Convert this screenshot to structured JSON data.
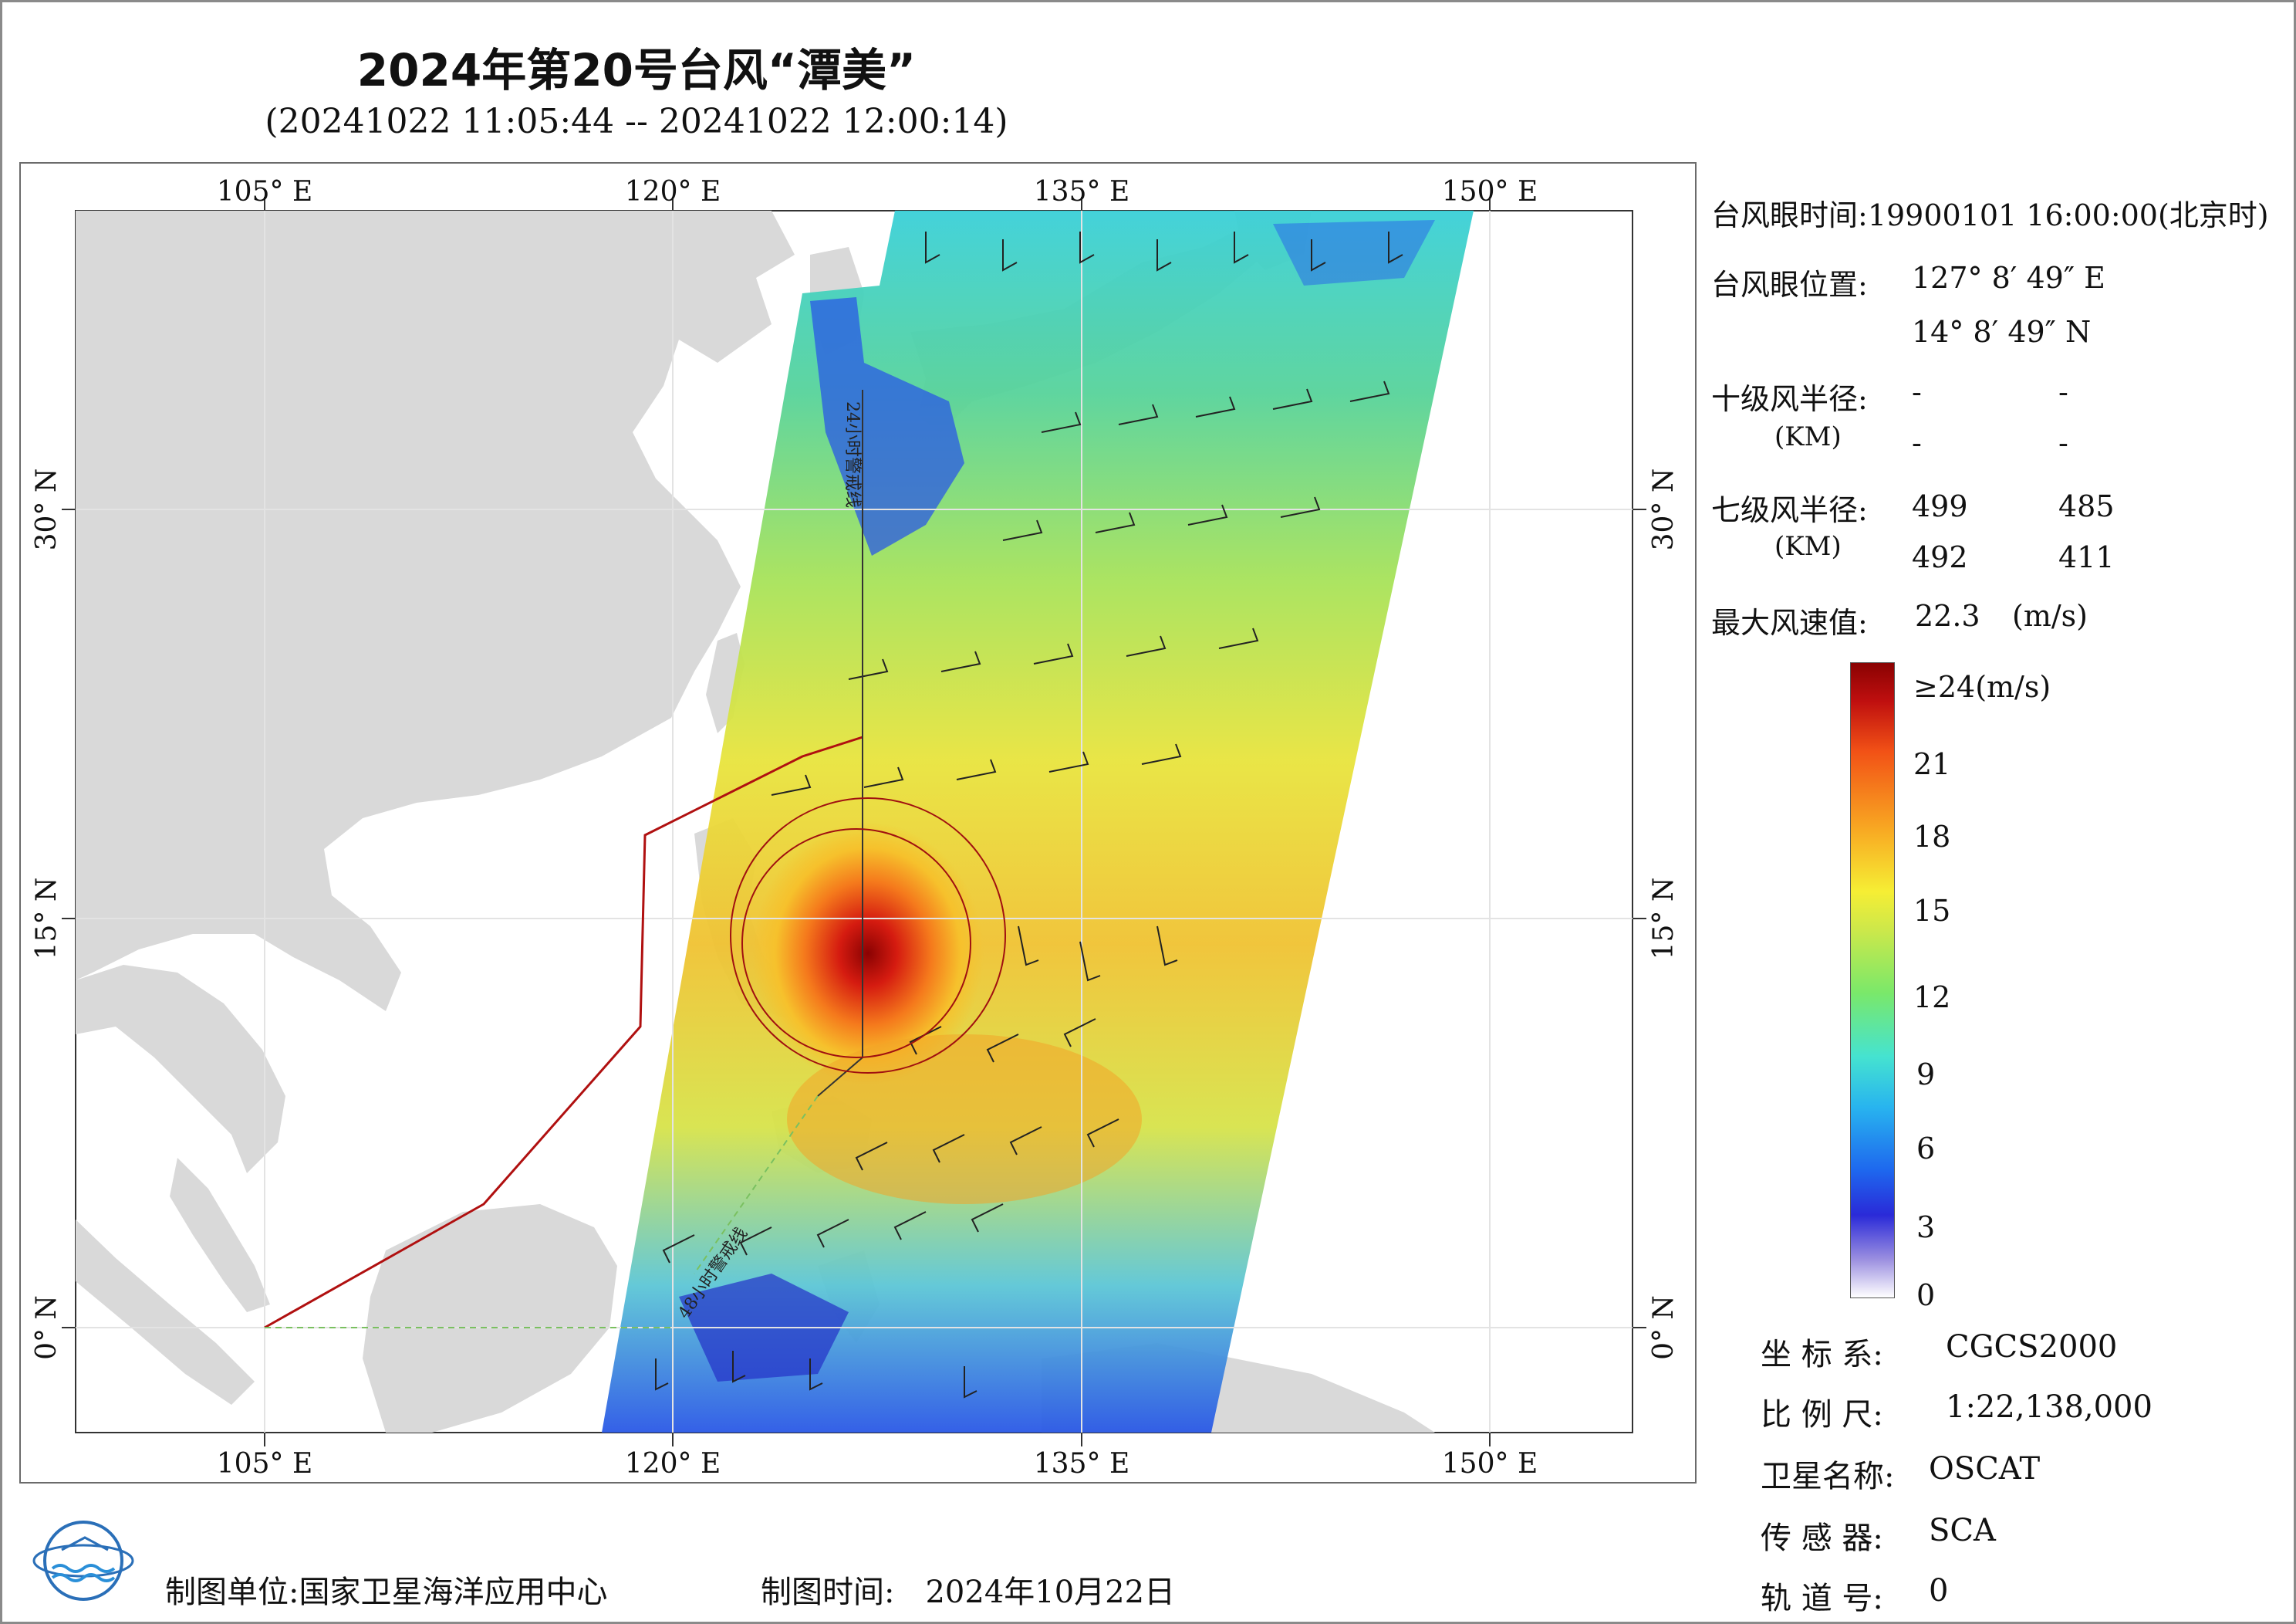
{
  "header": {
    "title": "2024年第20号台风“潭美”",
    "subtitle": "(20241022 11:05:44 -- 20241022 12:00:14)"
  },
  "map": {
    "lon_labels": [
      "105° E",
      "120° E",
      "135° E",
      "150° E"
    ],
    "lat_labels": [
      "30° N",
      "15° N",
      "0° N"
    ],
    "annotations": {
      "line_24h": "24小时警戒线",
      "line_48h": "48小时警戒线"
    }
  },
  "typhoon_info": {
    "eye_time_label": "台风眼时间:",
    "eye_time_value": "19900101 16:00:00(北京时)",
    "eye_pos_label": "台风眼位置:",
    "eye_lon": "127° 8′ 49″ E",
    "eye_lat": "14° 8′ 49″ N",
    "r10_label": "十级风半径:",
    "r10_unit": "(KM)",
    "r10_values": [
      "-",
      "-",
      "-",
      "-"
    ],
    "r7_label": "七级风半径:",
    "r7_unit": "(KM)",
    "r7_values": [
      "499",
      "485",
      "492",
      "411"
    ],
    "max_wind_label": "最大风速值:",
    "max_wind_value": "22.3",
    "max_wind_unit": "(m/s)"
  },
  "legend": {
    "labels": [
      "≥24(m/s)",
      "21",
      "18",
      "15",
      "12",
      "9",
      "6",
      "3",
      "0"
    ],
    "values": [
      24,
      21,
      18,
      15,
      12,
      9,
      6,
      3,
      0
    ]
  },
  "meta": {
    "coord_label": "坐 标 系:",
    "coord_value": "CGCS2000",
    "scale_label": "比 例 尺:",
    "scale_value": "1:22,138,000",
    "satellite_label": "卫星名称:",
    "satellite_value": "OSCAT",
    "sensor_label": "传 感 器:",
    "sensor_value": "SCA",
    "orbit_label": "轨 道 号:",
    "orbit_value": "0"
  },
  "footer": {
    "maker_label": "制图单位:",
    "maker_value": "国家卫星海洋应用中心",
    "date_label": "制图时间:",
    "date_value": "2024年10月22日"
  },
  "colors": {
    "land": "#d9d9d9",
    "warning_line": "#b01010",
    "swath_low": "#1e67ee",
    "swath_mid": "#f6ee34",
    "swath_high": "#bf0f0f"
  }
}
